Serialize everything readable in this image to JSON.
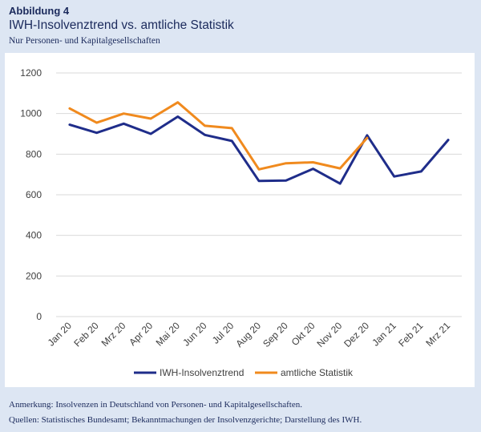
{
  "header": {
    "figure_number": "Abbildung 4",
    "title": "IWH-Insolvenztrend vs. amtliche Statistik",
    "subtitle": "Nur Personen- und Kapitalgesellschaften"
  },
  "notes": {
    "remark": "Anmerkung: Insolvenzen in Deutschland von Personen- und Kapitalgesellschaften.",
    "sources": "Quellen: Statistisches Bundesamt; Bekanntmachungen der Insolvenzgerichte; Darstellung des IWH."
  },
  "colors": {
    "background": "#dde6f3",
    "title": "#1b2a5c",
    "iwh_series": "#1f2d8a",
    "official_series": "#f08a1e",
    "grid": "#d9d9d9"
  },
  "chart_data": {
    "type": "line",
    "title": "",
    "xlabel": "",
    "ylabel": "",
    "ylim": [
      0,
      1200
    ],
    "yticks": [
      0,
      200,
      400,
      600,
      800,
      1000,
      1200
    ],
    "grid": "horizontal",
    "legend_position": "bottom",
    "categories": [
      "Jan 20",
      "Feb 20",
      "Mrz 20",
      "Apr 20",
      "Mai 20",
      "Jun 20",
      "Jul 20",
      "Aug 20",
      "Sep 20",
      "Okt 20",
      "Nov 20",
      "Dez 20",
      "Jan 21",
      "Feb 21",
      "Mrz 21"
    ],
    "series": [
      {
        "name": "IWH-Insolvenztrend",
        "color": "#1f2d8a",
        "values": [
          945,
          905,
          950,
          900,
          985,
          895,
          865,
          668,
          670,
          728,
          655,
          893,
          690,
          715,
          870
        ]
      },
      {
        "name": "amtliche Statistik",
        "color": "#f08a1e",
        "values": [
          1025,
          955,
          1000,
          975,
          1055,
          940,
          928,
          725,
          755,
          760,
          730,
          880,
          null,
          null,
          null
        ]
      }
    ]
  }
}
